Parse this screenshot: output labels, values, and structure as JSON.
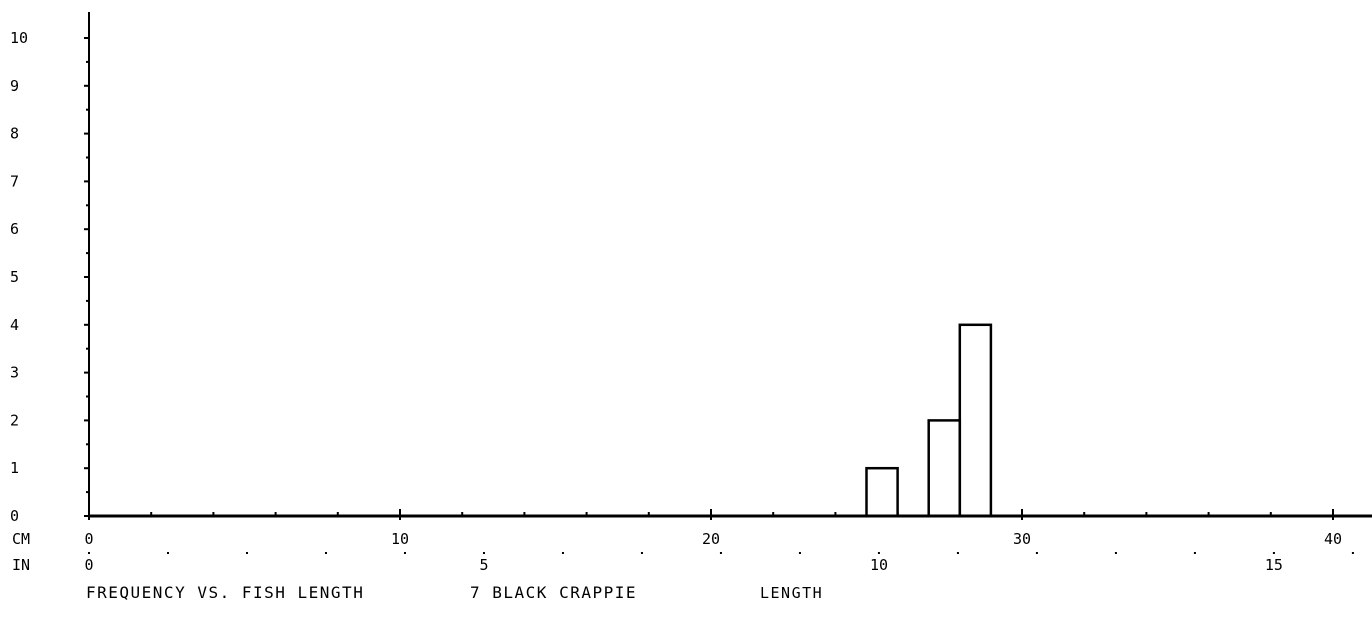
{
  "chart_data": {
    "type": "bar",
    "title": "FREQUENCY VS. FISH LENGTH",
    "subtitle": "7 BLACK CRAPPIE",
    "xlabel": "LENGTH",
    "ylabel": "",
    "x_units": "CM",
    "secondary_x_units": "IN",
    "xlim": [
      0,
      41
    ],
    "ylim": [
      0,
      10
    ],
    "y_ticks": [
      "0",
      "1",
      "2",
      "3",
      "4",
      "5",
      "6",
      "7",
      "8",
      "9",
      "10"
    ],
    "x_ticks_cm": [
      "0",
      "10",
      "20",
      "30",
      "40"
    ],
    "x_ticks_in": [
      "0",
      "5",
      "10",
      "15"
    ],
    "bins": [
      {
        "x0": 25,
        "x1": 26,
        "value": 1
      },
      {
        "x0": 27,
        "x1": 28,
        "value": 2
      },
      {
        "x0": 28,
        "x1": 29,
        "value": 4
      }
    ],
    "colors": {
      "ink": "#000000",
      "background": "#ffffff"
    }
  }
}
